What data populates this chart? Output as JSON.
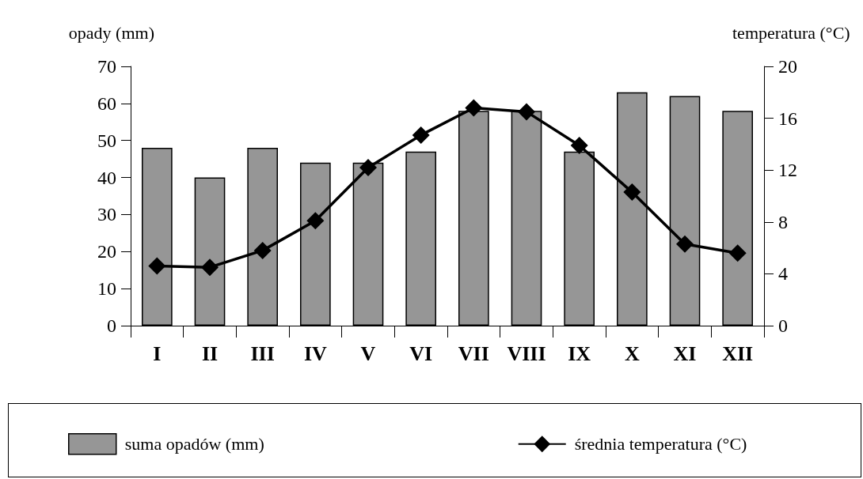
{
  "chart_data": {
    "type": "bar",
    "categories": [
      "I",
      "II",
      "III",
      "IV",
      "V",
      "VI",
      "VII",
      "VIII",
      "IX",
      "X",
      "XI",
      "XII"
    ],
    "ylabel": "opady (mm)",
    "y2label": "temperatura (°C)",
    "ylim": [
      0,
      70
    ],
    "yticks": [
      0,
      10,
      20,
      30,
      40,
      50,
      60,
      70
    ],
    "y2lim": [
      0,
      20
    ],
    "y2ticks": [
      0,
      4,
      8,
      12,
      16,
      20
    ],
    "series": [
      {
        "name": "suma opadów (mm)",
        "type": "bar",
        "color": "#969696",
        "values": [
          48,
          40,
          48,
          44,
          44,
          47,
          58,
          58,
          47,
          63,
          62,
          58
        ]
      },
      {
        "name": "średnia temperatura (°C)",
        "type": "line",
        "axis": "y2",
        "color": "#000000",
        "values": [
          4.6,
          4.5,
          5.8,
          8.1,
          12.2,
          14.7,
          16.8,
          16.5,
          13.9,
          10.3,
          6.3,
          5.6
        ]
      }
    ],
    "marker": "diamond",
    "line_style": "solid",
    "grid": false,
    "legend": "bottom"
  }
}
